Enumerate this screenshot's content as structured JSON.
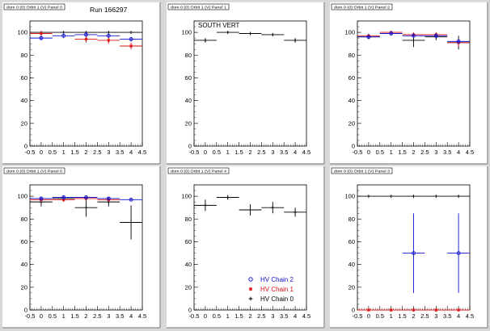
{
  "run_label": "Run 166297",
  "colors": {
    "chain2": "#1111cc",
    "chain1": "#dd1111",
    "chain0": "#000000",
    "background": "#d8d8d8",
    "pad": "#ffffff"
  },
  "legend": [
    {
      "label": "HV Chain 2",
      "color": "#1111cc",
      "marker": "open-circle"
    },
    {
      "label": "HV Chain 1",
      "color": "#dd1111",
      "marker": "star"
    },
    {
      "label": "HV Chain 0",
      "color": "#000000",
      "marker": "plus"
    }
  ],
  "chart_data": [
    {
      "type": "scatter",
      "title": "dom 0 (0) Orbit 1 (V) Panel 0",
      "xlim": [
        -0.5,
        4.5
      ],
      "ylim": [
        0,
        110
      ],
      "xticks": [
        -0.5,
        0,
        0.5,
        1,
        1.5,
        2,
        2.5,
        3,
        3.5,
        4,
        4.5
      ],
      "yticks": [
        0,
        20,
        40,
        60,
        80,
        100
      ],
      "series": [
        {
          "name": "HV Chain 0",
          "color": "#000000",
          "points": [
            {
              "x": 0,
              "y": 100,
              "ex": 0.5,
              "ey": 0
            },
            {
              "x": 1,
              "y": 100,
              "ex": 0.5,
              "ey": 0
            },
            {
              "x": 2,
              "y": 100,
              "ex": 0.5,
              "ey": 0
            },
            {
              "x": 3,
              "y": 100,
              "ex": 0.5,
              "ey": 0
            },
            {
              "x": 4,
              "y": 100,
              "ex": 0.5,
              "ey": 0
            }
          ]
        },
        {
          "name": "HV Chain 1",
          "color": "#dd1111",
          "points": [
            {
              "x": 0,
              "y": 99,
              "ex": 0.5,
              "ey": 2
            },
            {
              "x": 2,
              "y": 94,
              "ex": 0.5,
              "ey": 3
            },
            {
              "x": 3,
              "y": 93,
              "ex": 0.5,
              "ey": 3
            },
            {
              "x": 4,
              "y": 88,
              "ex": 0.5,
              "ey": 3
            }
          ]
        },
        {
          "name": "HV Chain 2",
          "color": "#1111cc",
          "points": [
            {
              "x": 0,
              "y": 95,
              "ex": 0.5,
              "ey": 2
            },
            {
              "x": 1,
              "y": 97,
              "ex": 0.5,
              "ey": 2
            },
            {
              "x": 2,
              "y": 98,
              "ex": 0.5,
              "ey": 2
            },
            {
              "x": 3,
              "y": 97,
              "ex": 0.5,
              "ey": 2
            },
            {
              "x": 4,
              "y": 94,
              "ex": 0.5,
              "ey": 2
            }
          ]
        }
      ]
    },
    {
      "type": "scatter",
      "title": "dom 0 (0) Orbit 1 (V) Panel 1",
      "annotation": "SOUTH VERT",
      "xlim": [
        -0.5,
        4.5
      ],
      "ylim": [
        0,
        110
      ],
      "xticks": [
        -0.5,
        0,
        0.5,
        1,
        1.5,
        2,
        2.5,
        3,
        3.5,
        4,
        4.5
      ],
      "yticks": [
        0,
        20,
        40,
        60,
        80,
        100
      ],
      "series": [
        {
          "name": "HV Chain 0",
          "color": "#000000",
          "points": [
            {
              "x": 0,
              "y": 93,
              "ex": 0.5,
              "ey": 2
            },
            {
              "x": 1,
              "y": 100,
              "ex": 0.5,
              "ey": 1
            },
            {
              "x": 2,
              "y": 99,
              "ex": 0.5,
              "ey": 1
            },
            {
              "x": 3,
              "y": 98,
              "ex": 0.5,
              "ey": 1
            },
            {
              "x": 4,
              "y": 93,
              "ex": 0.5,
              "ey": 2
            }
          ]
        }
      ]
    },
    {
      "type": "scatter",
      "title": "dom 0 (0) Orbit 1 (V) Panel 2",
      "xlim": [
        -0.5,
        4.5
      ],
      "ylim": [
        0,
        110
      ],
      "xticks": [
        -0.5,
        0,
        0.5,
        1,
        1.5,
        2,
        2.5,
        3,
        3.5,
        4,
        4.5
      ],
      "yticks": [
        0,
        20,
        40,
        60,
        80,
        100
      ],
      "series": [
        {
          "name": "HV Chain 0",
          "color": "#000000",
          "points": [
            {
              "x": 0,
              "y": 96,
              "ex": 0.5,
              "ey": 2
            },
            {
              "x": 1,
              "y": 99,
              "ex": 0.5,
              "ey": 1
            },
            {
              "x": 2,
              "y": 93,
              "ex": 0.5,
              "ey": 6
            },
            {
              "x": 3,
              "y": 96,
              "ex": 0.5,
              "ey": 3
            },
            {
              "x": 4,
              "y": 91,
              "ex": 0.5,
              "ey": 6
            }
          ]
        },
        {
          "name": "HV Chain 1",
          "color": "#dd1111",
          "points": [
            {
              "x": 0,
              "y": 97,
              "ex": 0.5,
              "ey": 2
            },
            {
              "x": 1,
              "y": 100,
              "ex": 0.5,
              "ey": 1
            },
            {
              "x": 2,
              "y": 98,
              "ex": 0.5,
              "ey": 2
            },
            {
              "x": 3,
              "y": 98,
              "ex": 0.5,
              "ey": 2
            },
            {
              "x": 4,
              "y": 91,
              "ex": 0.5,
              "ey": 3
            }
          ]
        },
        {
          "name": "HV Chain 2",
          "color": "#1111cc",
          "points": [
            {
              "x": 0,
              "y": 96,
              "ex": 0.5,
              "ey": 2
            },
            {
              "x": 1,
              "y": 99,
              "ex": 0.5,
              "ey": 1
            },
            {
              "x": 2,
              "y": 97,
              "ex": 0.5,
              "ey": 2
            },
            {
              "x": 3,
              "y": 97,
              "ex": 0.5,
              "ey": 2
            },
            {
              "x": 4,
              "y": 92,
              "ex": 0.5,
              "ey": 2
            }
          ]
        }
      ]
    },
    {
      "type": "scatter",
      "title": "dom 0 (0) Orbit 1 (V) Panel 0",
      "xlim": [
        -0.5,
        4.5
      ],
      "ylim": [
        0,
        110
      ],
      "xticks": [
        -0.5,
        0,
        0.5,
        1,
        1.5,
        2,
        2.5,
        3,
        3.5,
        4,
        4.5
      ],
      "yticks": [
        0,
        20,
        40,
        60,
        80,
        100
      ],
      "series": [
        {
          "name": "HV Chain 0",
          "color": "#000000",
          "points": [
            {
              "x": 0,
              "y": 95,
              "ex": 0.5,
              "ey": 4
            },
            {
              "x": 1,
              "y": 98,
              "ex": 0.5,
              "ey": 2
            },
            {
              "x": 2,
              "y": 90,
              "ex": 0.5,
              "ey": 8
            },
            {
              "x": 3,
              "y": 95,
              "ex": 0.5,
              "ey": 4
            },
            {
              "x": 4,
              "y": 77,
              "ex": 0.5,
              "ey": 15
            }
          ]
        },
        {
          "name": "HV Chain 1",
          "color": "#dd1111",
          "points": [
            {
              "x": 0,
              "y": 97,
              "ex": 0.5,
              "ey": 2
            },
            {
              "x": 1,
              "y": 97,
              "ex": 0.5,
              "ey": 2
            },
            {
              "x": 2,
              "y": 98,
              "ex": 0.5,
              "ey": 2
            },
            {
              "x": 3,
              "y": 97,
              "ex": 0.5,
              "ey": 2
            }
          ]
        },
        {
          "name": "HV Chain 2",
          "color": "#1111cc",
          "points": [
            {
              "x": 0,
              "y": 98,
              "ex": 0.5,
              "ey": 1
            },
            {
              "x": 1,
              "y": 99,
              "ex": 0.5,
              "ey": 1
            },
            {
              "x": 2,
              "y": 99,
              "ex": 0.5,
              "ey": 1
            },
            {
              "x": 3,
              "y": 98,
              "ex": 0.5,
              "ey": 1
            },
            {
              "x": 4,
              "y": 97,
              "ex": 0.5,
              "ey": 1
            }
          ]
        }
      ]
    },
    {
      "type": "scatter",
      "title": "dom 0 (0) Orbit 1 (V) Panel 4",
      "xlim": [
        -0.5,
        4.5
      ],
      "ylim": [
        0,
        110
      ],
      "xticks": [
        -0.5,
        0,
        0.5,
        1,
        1.5,
        2,
        2.5,
        3,
        3.5,
        4,
        4.5
      ],
      "yticks": [
        0,
        20,
        40,
        60,
        80,
        100
      ],
      "has_legend": true,
      "series": [
        {
          "name": "HV Chain 0",
          "color": "#000000",
          "points": [
            {
              "x": 0,
              "y": 92,
              "ex": 0.5,
              "ey": 5
            },
            {
              "x": 1,
              "y": 99,
              "ex": 0.5,
              "ey": 2
            },
            {
              "x": 2,
              "y": 88,
              "ex": 0.5,
              "ey": 5
            },
            {
              "x": 3,
              "y": 90,
              "ex": 0.5,
              "ey": 5
            },
            {
              "x": 4,
              "y": 86,
              "ex": 0.5,
              "ey": 4
            }
          ]
        }
      ]
    },
    {
      "type": "scatter",
      "title": "dom 0 (0) Orbit 1 (V) Panel 3",
      "xlim": [
        -0.5,
        4.5
      ],
      "ylim": [
        0,
        110
      ],
      "xticks": [
        -0.5,
        0,
        0.5,
        1,
        1.5,
        2,
        2.5,
        3,
        3.5,
        4,
        4.5
      ],
      "yticks": [
        0,
        20,
        40,
        60,
        80,
        100
      ],
      "series": [
        {
          "name": "HV Chain 0",
          "color": "#000000",
          "points": [
            {
              "x": 0,
              "y": 100,
              "ex": 0.5,
              "ey": 0
            },
            {
              "x": 1,
              "y": 100,
              "ex": 0.5,
              "ey": 0
            },
            {
              "x": 2,
              "y": 100,
              "ex": 0.5,
              "ey": 0
            },
            {
              "x": 3,
              "y": 100,
              "ex": 0.5,
              "ey": 0
            },
            {
              "x": 4,
              "y": 100,
              "ex": 0.5,
              "ey": 0
            }
          ]
        },
        {
          "name": "HV Chain 1",
          "color": "#dd1111",
          "points": [
            {
              "x": 0,
              "y": 0,
              "ex": 0.5,
              "ey": 0
            },
            {
              "x": 1,
              "y": 0,
              "ex": 0.5,
              "ey": 0
            },
            {
              "x": 2,
              "y": 0,
              "ex": 0.5,
              "ey": 0
            },
            {
              "x": 3,
              "y": 0,
              "ex": 0.5,
              "ey": 0
            },
            {
              "x": 4,
              "y": 0,
              "ex": 0.5,
              "ey": 0
            }
          ]
        },
        {
          "name": "HV Chain 2",
          "color": "#1111cc",
          "points": [
            {
              "x": 2,
              "y": 50,
              "ex": 0.5,
              "ey": 35
            },
            {
              "x": 4,
              "y": 50,
              "ex": 0.5,
              "ey": 35
            }
          ]
        }
      ]
    }
  ]
}
